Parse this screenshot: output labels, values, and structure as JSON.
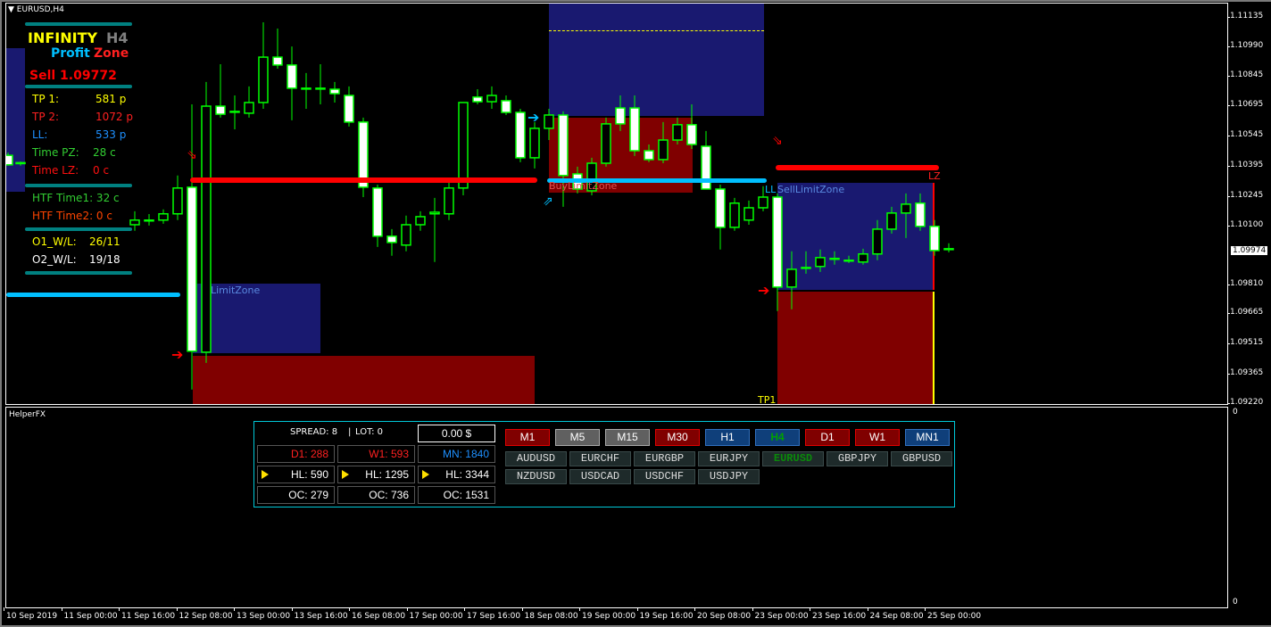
{
  "window_title": "EURUSD,H4",
  "subwindow_title": "HelperFX",
  "colors": {
    "bull": "#00ff00",
    "bear_fill": "#ffffff",
    "zone_blue": "#191970",
    "zone_red": "#800000",
    "accent_teal": "#008080",
    "line_red": "#ff0000",
    "line_blue": "#00bfff"
  },
  "panel": {
    "title_infinity": "INFINITY",
    "title_tf": "H4",
    "profit": "Profit",
    "zone": "Zone",
    "signal": "Sell 1.09772",
    "rows": [
      {
        "label": "TP 1:",
        "value": "581 p",
        "color": "#ffff00"
      },
      {
        "label": "TP 2:",
        "value": "1072 p",
        "color": "#ff2020"
      },
      {
        "label": "LL:",
        "value": "533 p",
        "color": "#1e90ff"
      },
      {
        "label": "Time PZ:",
        "value": "28 c",
        "color": "#32cd32"
      },
      {
        "label": "Time LZ:",
        "value": "0 c",
        "color": "#ff1010"
      }
    ],
    "htf1": "HTF Time1: 32 c",
    "htf2": "HTF Time2: 0 c",
    "o1_label": "O1_W/L:",
    "o1_value": "26/11",
    "o2_label": "O2_W/L:",
    "o2_value": "19/18"
  },
  "price_axis": [
    "1.11135",
    "1.10990",
    "1.10845",
    "1.10695",
    "1.10545",
    "1.10395",
    "1.10245",
    "1.10100",
    "1.09810",
    "1.09665",
    "1.09515",
    "1.09365",
    "1.09220"
  ],
  "current_price": "1.09974",
  "sub_axis": {
    "top": "0",
    "bottom": "0"
  },
  "time_axis": [
    "10 Sep 2019",
    "11 Sep 00:00",
    "11 Sep 16:00",
    "12 Sep 08:00",
    "13 Sep 00:00",
    "13 Sep 16:00",
    "16 Sep 08:00",
    "17 Sep 00:00",
    "17 Sep 16:00",
    "18 Sep 08:00",
    "19 Sep 00:00",
    "19 Sep 16:00",
    "20 Sep 08:00",
    "23 Sep 00:00",
    "23 Sep 16:00",
    "24 Sep 08:00",
    "25 Sep 00:00"
  ],
  "zone_labels": {
    "buy_limit": "BuyLimitZone",
    "left_limit": "LimitZone",
    "ll": "LL",
    "sell_limit": "SellLimitZone",
    "tp1": "TP1",
    "lz": "LZ"
  },
  "candles": [
    [
      1.10431,
      1.10445,
      1.1038,
      1.10384
    ],
    [
      1.1039,
      1.104,
      1.1038,
      1.10395
    ],
    [
      1.10087,
      1.10154,
      1.10057,
      1.1011
    ],
    [
      1.1011,
      1.1014,
      1.10083,
      1.1011
    ],
    [
      1.1011,
      1.10163,
      1.10092,
      1.10141
    ],
    [
      1.10141,
      1.10331,
      1.1011,
      1.10269
    ],
    [
      1.10273,
      1.10684,
      1.0927,
      1.0946
    ],
    [
      1.09455,
      1.10795,
      1.09402,
      1.10675
    ],
    [
      1.10675,
      1.10883,
      1.10618,
      1.10635
    ],
    [
      1.10649,
      1.10728,
      1.1056,
      1.10649
    ],
    [
      1.1064,
      1.10773,
      1.10618,
      1.10693
    ],
    [
      1.10693,
      1.11091,
      1.10662,
      1.10918
    ],
    [
      1.10918,
      1.1106,
      1.10861,
      1.10879
    ],
    [
      1.10879,
      1.10971,
      1.10605,
      1.10764
    ],
    [
      1.10764,
      1.10839,
      1.10662,
      1.10764
    ],
    [
      1.10764,
      1.10883,
      1.10684,
      1.10764
    ],
    [
      1.10759,
      1.10795,
      1.10693,
      1.10737
    ],
    [
      1.10728,
      1.10773,
      1.10574,
      1.10596
    ],
    [
      1.10596,
      1.10618,
      1.10224,
      1.10273
    ],
    [
      1.10269,
      1.10286,
      1.09977,
      1.1003
    ],
    [
      1.1003,
      1.10065,
      1.09933,
      1.09999
    ],
    [
      1.09986,
      1.10132,
      1.09955,
      1.10087
    ],
    [
      1.10087,
      1.10154,
      1.10057,
      1.10127
    ],
    [
      1.10141,
      1.1022,
      1.09902,
      1.10149
    ],
    [
      1.10141,
      1.10308,
      1.1011,
      1.10269
    ],
    [
      1.10269,
      1.10693,
      1.10233,
      1.10693
    ],
    [
      1.1072,
      1.10759,
      1.10684,
      1.10697
    ],
    [
      1.10697,
      1.10773,
      1.10662,
      1.10728
    ],
    [
      1.10702,
      1.10728,
      1.10631,
      1.10644
    ],
    [
      1.10644,
      1.10662,
      1.10397,
      1.10419
    ],
    [
      1.10419,
      1.10596,
      1.10366,
      1.10565
    ],
    [
      1.10565,
      1.10662,
      1.10507,
      1.10631
    ],
    [
      1.10631,
      1.10649,
      1.10176,
      1.10331
    ],
    [
      1.10339,
      1.10375,
      1.10242,
      1.10264
    ],
    [
      1.10255,
      1.10419,
      1.10233,
      1.10392
    ],
    [
      1.10392,
      1.10618,
      1.10375,
      1.10587
    ],
    [
      1.10666,
      1.10728,
      1.10552,
      1.10587
    ],
    [
      1.10666,
      1.10728,
      1.10428,
      1.10454
    ],
    [
      1.10454,
      1.10485,
      1.10397,
      1.1041
    ],
    [
      1.1041,
      1.10596,
      1.10392,
      1.10507
    ],
    [
      1.10507,
      1.10618,
      1.10485,
      1.10583
    ],
    [
      1.10583,
      1.10684,
      1.10463,
      1.10485
    ],
    [
      1.10476,
      1.10552,
      1.10264,
      1.10264
    ],
    [
      1.10264,
      1.10286,
      1.09964,
      1.10074
    ],
    [
      1.10074,
      1.1022,
      1.10057,
      1.10194
    ],
    [
      1.1011,
      1.10207,
      1.10087,
      1.10171
    ],
    [
      1.10171,
      1.10278,
      1.10154,
      1.10224
    ],
    [
      1.10224,
      1.10242,
      1.09659,
      1.09778
    ],
    [
      1.09778,
      1.09955,
      1.09668,
      1.09866
    ],
    [
      1.09875,
      1.09955,
      1.09844,
      1.09875
    ],
    [
      1.0988,
      1.09964,
      1.09853,
      1.09924
    ],
    [
      1.0992,
      1.09955,
      1.09889,
      1.0992
    ],
    [
      1.09911,
      1.09933,
      1.09897,
      1.09911
    ],
    [
      1.09902,
      1.09968,
      1.09889,
      1.09942
    ],
    [
      1.09942,
      1.1011,
      1.09911,
      1.10065
    ],
    [
      1.10065,
      1.10176,
      1.10043,
      1.10145
    ],
    [
      1.10145,
      1.10242,
      1.10021,
      1.10189
    ],
    [
      1.10194,
      1.10242,
      1.10057,
      1.10079
    ],
    [
      1.10079,
      1.1011,
      1.09933,
      1.09959
    ],
    [
      1.09968,
      1.09995,
      1.0995,
      1.09968
    ]
  ],
  "helper": {
    "spread": "SPREAD: 8",
    "lot": "LOT: 0",
    "balance": "0.00 $",
    "d1": "D1: 288",
    "w1": "W1: 593",
    "mn": "MN: 1840",
    "hl": [
      "HL: 590",
      "HL: 1295",
      "HL: 3344"
    ],
    "oc": [
      "OC: 279",
      "OC: 736",
      "OC: 1531"
    ],
    "timeframes": [
      {
        "label": "M1",
        "style": "red"
      },
      {
        "label": "M5",
        "style": "gray"
      },
      {
        "label": "M15",
        "style": "gray"
      },
      {
        "label": "M30",
        "style": "red"
      },
      {
        "label": "H1",
        "style": "blue"
      },
      {
        "label": "H4",
        "style": "active"
      },
      {
        "label": "D1",
        "style": "red"
      },
      {
        "label": "W1",
        "style": "red"
      },
      {
        "label": "MN1",
        "style": "blue"
      }
    ],
    "symbols": [
      "AUDUSD",
      "EURCHF",
      "EURGBP",
      "EURJPY",
      "EURUSD",
      "GBPJPY",
      "GBPUSD",
      "NZDUSD",
      "USDCAD",
      "USDCHF",
      "USDJPY"
    ],
    "active_symbol": "EURUSD"
  }
}
